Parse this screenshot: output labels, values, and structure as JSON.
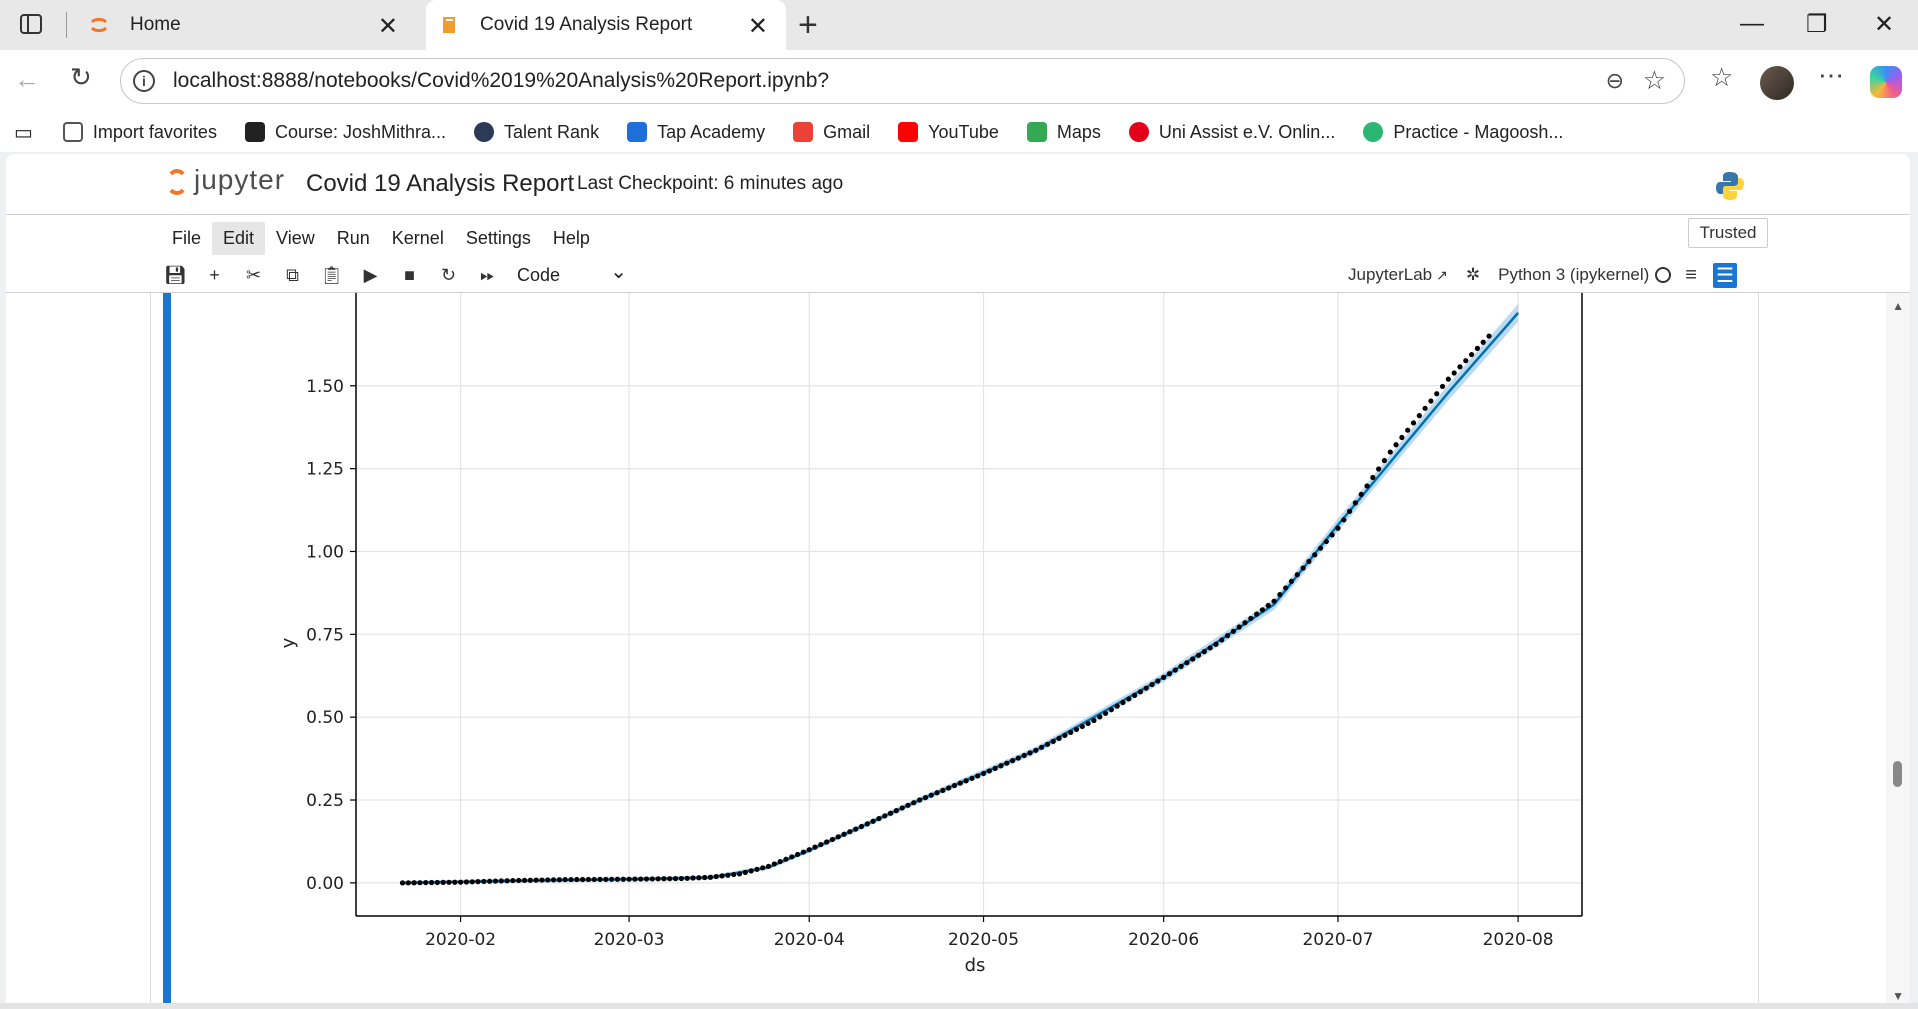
{
  "browser": {
    "tabs": [
      {
        "title": "Home",
        "active": false,
        "favicon": "jupyter-favicon"
      },
      {
        "title": "Covid 19 Analysis Report",
        "active": true,
        "favicon": "notebook-favicon"
      }
    ],
    "url": "localhost:8888/notebooks/Covid%2019%20Analysis%20Report.ipynb?",
    "bookmarks": [
      {
        "label": "Import favorites",
        "icon": "import-icon",
        "color": "#555555"
      },
      {
        "label": "Course: JoshMithra...",
        "icon": "course-icon",
        "color": "#222222"
      },
      {
        "label": "Talent Rank",
        "icon": "talent-rank-icon",
        "color": "#2b3a55"
      },
      {
        "label": "Tap Academy",
        "icon": "tap-academy-icon",
        "color": "#1e6fd9"
      },
      {
        "label": "Gmail",
        "icon": "gmail-icon",
        "color": "#ea4335"
      },
      {
        "label": "YouTube",
        "icon": "youtube-icon",
        "color": "#ff0000"
      },
      {
        "label": "Maps",
        "icon": "maps-icon",
        "color": "#34a853"
      },
      {
        "label": "Uni Assist e.V. Onlin...",
        "icon": "uni-assist-icon",
        "color": "#e2001a"
      },
      {
        "label": "Practice - Magoosh...",
        "icon": "magoosh-icon",
        "color": "#2bb673"
      }
    ]
  },
  "jupyter": {
    "logo_text": "jupyter",
    "notebook_title": "Covid 19 Analysis Report",
    "checkpoint": "Last Checkpoint: 6 minutes ago",
    "menu": [
      "File",
      "Edit",
      "View",
      "Run",
      "Kernel",
      "Settings",
      "Help"
    ],
    "trusted": "Trusted",
    "cell_type": "Code",
    "jupyterlab_link": "JupyterLab",
    "kernel": "Python 3 (ipykernel)"
  },
  "chart_data": {
    "type": "line",
    "title": "",
    "xlabel": "ds",
    "ylabel": "y",
    "x_ticks": [
      "2020-02",
      "2020-03",
      "2020-04",
      "2020-05",
      "2020-06",
      "2020-07",
      "2020-08"
    ],
    "y_ticks": [
      "0.00",
      "0.25",
      "0.50",
      "0.75",
      "1.00",
      "1.25",
      "1.50"
    ],
    "ylim": [
      -0.1,
      1.78
    ],
    "xlim": [
      "2020-01-14",
      "2020-08-12"
    ],
    "grid": true,
    "series": [
      {
        "kind": "observed-points",
        "color": "#000000",
        "x": [
          "2020-01-22",
          "2020-02-01",
          "2020-02-10",
          "2020-02-20",
          "2020-03-01",
          "2020-03-10",
          "2020-03-15",
          "2020-03-20",
          "2020-03-25",
          "2020-04-01",
          "2020-04-10",
          "2020-04-20",
          "2020-05-01",
          "2020-05-10",
          "2020-05-20",
          "2020-06-01",
          "2020-06-10",
          "2020-06-20",
          "2020-07-01",
          "2020-07-10",
          "2020-07-20",
          "2020-07-27"
        ],
        "y": [
          0.0,
          0.002,
          0.007,
          0.01,
          0.011,
          0.013,
          0.017,
          0.027,
          0.05,
          0.1,
          0.17,
          0.25,
          0.33,
          0.4,
          0.49,
          0.62,
          0.72,
          0.85,
          1.07,
          1.3,
          1.52,
          1.65
        ]
      },
      {
        "kind": "forecast-line",
        "color": "#0072b2",
        "x": [
          "2020-01-22",
          "2020-02-10",
          "2020-03-01",
          "2020-03-15",
          "2020-03-25",
          "2020-04-01",
          "2020-04-20",
          "2020-05-10",
          "2020-06-01",
          "2020-06-20",
          "2020-07-01",
          "2020-07-20",
          "2020-08-01"
        ],
        "y": [
          0.0,
          0.006,
          0.011,
          0.016,
          0.047,
          0.098,
          0.25,
          0.4,
          0.62,
          0.84,
          1.08,
          1.48,
          1.72
        ]
      }
    ]
  }
}
